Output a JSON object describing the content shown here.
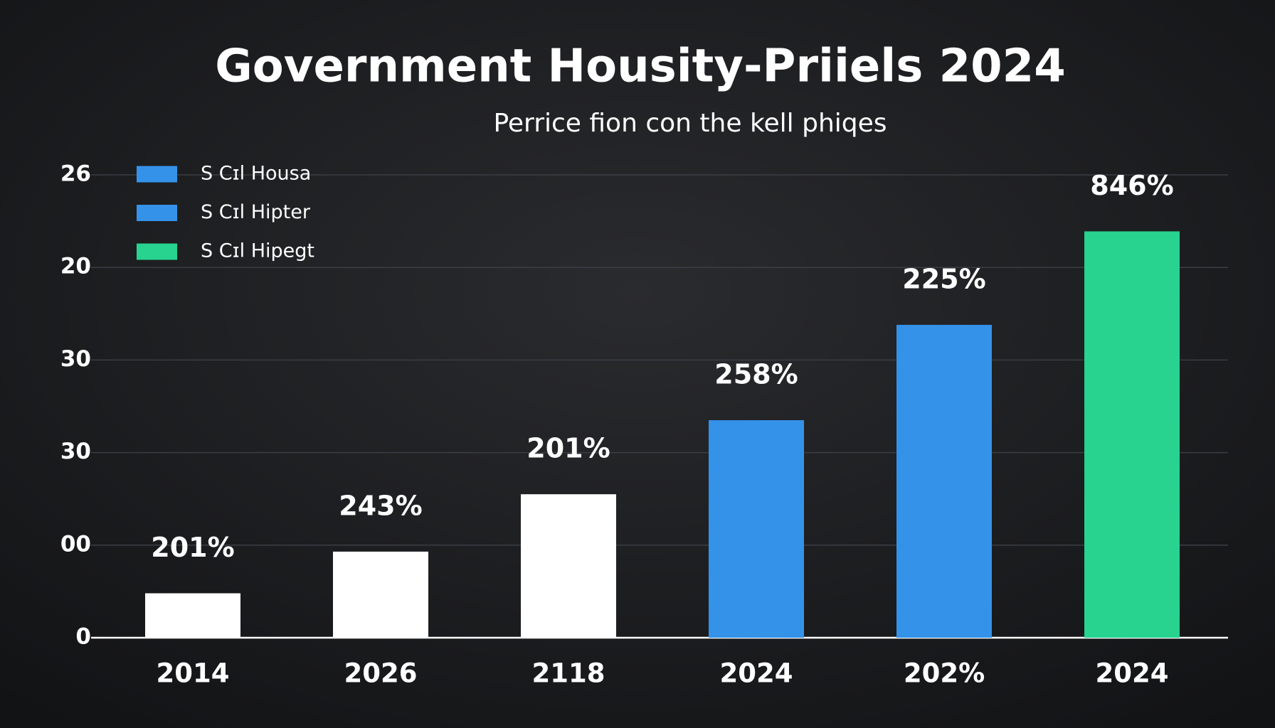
{
  "chart_data": {
    "type": "bar",
    "title": "Government Housity-Priiels 2024",
    "subtitle": "Perrice fion con the kell phiqes",
    "categories": [
      "2014",
      "2026",
      "2118",
      "2024",
      "202%",
      "2024"
    ],
    "values": [
      0.48,
      0.93,
      1.55,
      2.35,
      3.38,
      4.39
    ],
    "bar_labels": [
      "201%",
      "243%",
      "201%",
      "258%",
      "225%",
      "846%"
    ],
    "colors": [
      "#ffffff",
      "#ffffff",
      "#ffffff",
      "#3592e9",
      "#3592e9",
      "#27d38f"
    ],
    "legend": [
      {
        "name": "S Cɪl Housa",
        "color": "#3592e9"
      },
      {
        "name": "S Cɪl Hipter",
        "color": "#3592e9"
      },
      {
        "name": "S Cɪl Hipegt",
        "color": "#27d38f"
      }
    ],
    "ylim": [
      0,
      5
    ],
    "yticks": [
      0,
      1,
      2,
      3,
      4,
      5
    ],
    "ytick_labels": [
      "0",
      "00",
      "30",
      "30",
      "20",
      "26"
    ],
    "grid": true
  }
}
